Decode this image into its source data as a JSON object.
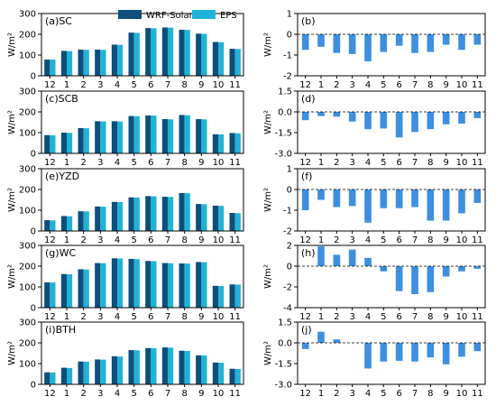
{
  "colors": {
    "wrf": "#0d4f7a",
    "eps": "#1fb3d8",
    "diff": "#3d8fe0",
    "axis": "#000000"
  },
  "legend": {
    "wrf_label": "WRF-Solar",
    "eps_label": "EPS"
  },
  "categories": [
    "12",
    "1",
    "2",
    "3",
    "4",
    "5",
    "6",
    "7",
    "8",
    "9",
    "10",
    "11"
  ],
  "chart_data": [
    {
      "type": "bar",
      "tag": "(a)SC",
      "ylabel": "W/m²",
      "ylim": [
        0,
        300
      ],
      "yticks": [
        0,
        100,
        200,
        300
      ],
      "series": [
        {
          "name": "WRF-Solar",
          "values": [
            78,
            120,
            126,
            126,
            150,
            208,
            230,
            233,
            222,
            203,
            163,
            130
          ]
        },
        {
          "name": "EPS",
          "values": [
            78,
            119,
            125,
            125,
            149,
            207,
            229,
            232,
            221,
            202,
            162,
            129
          ]
        }
      ]
    },
    {
      "type": "bar",
      "tag": "(b)",
      "ylabel": "W/m²",
      "ylim": [
        -2,
        1
      ],
      "yticks": [
        1,
        0,
        -1,
        -2
      ],
      "zero_line": true,
      "values": [
        -0.75,
        -0.6,
        -0.9,
        -0.95,
        -1.3,
        -0.85,
        -0.55,
        -0.9,
        -0.85,
        -0.5,
        -0.75,
        -0.5
      ]
    },
    {
      "type": "bar",
      "tag": "(c)SCB",
      "ylabel": "W/m²",
      "ylim": [
        0,
        300
      ],
      "yticks": [
        0,
        100,
        200,
        300
      ],
      "series": [
        {
          "name": "WRF-Solar",
          "values": [
            88,
            100,
            122,
            155,
            155,
            180,
            183,
            165,
            185,
            165,
            92,
            98
          ]
        },
        {
          "name": "EPS",
          "values": [
            87,
            99,
            121,
            154,
            154,
            179,
            182,
            164,
            184,
            164,
            91,
            97
          ]
        }
      ]
    },
    {
      "type": "bar",
      "tag": "(d)",
      "ylabel": "W/m²",
      "ylim": [
        -3,
        1.5
      ],
      "yticks": [
        1.5,
        0.0,
        -1.5,
        -3.0
      ],
      "tick_format": "fixed1",
      "zero_line": true,
      "values": [
        -0.6,
        -0.3,
        -0.35,
        -0.7,
        -1.25,
        -1.2,
        -1.85,
        -1.45,
        -1.25,
        -0.9,
        -0.85,
        -0.45
      ]
    },
    {
      "type": "bar",
      "tag": "(e)YZD",
      "ylabel": "W/m²",
      "ylim": [
        0,
        300
      ],
      "yticks": [
        0,
        100,
        200,
        300
      ],
      "series": [
        {
          "name": "WRF-Solar",
          "values": [
            52,
            72,
            95,
            118,
            140,
            162,
            168,
            165,
            183,
            130,
            122,
            87
          ]
        },
        {
          "name": "EPS",
          "values": [
            51,
            71,
            94,
            117,
            139,
            161,
            167,
            164,
            182,
            129,
            121,
            86
          ]
        }
      ]
    },
    {
      "type": "bar",
      "tag": "(f)",
      "ylabel": "W/m²",
      "ylim": [
        -2,
        1
      ],
      "yticks": [
        1,
        0,
        -1,
        -2
      ],
      "zero_line": true,
      "values": [
        -1.0,
        -0.5,
        -0.85,
        -0.8,
        -1.6,
        -0.9,
        -0.9,
        -0.85,
        -1.5,
        -1.5,
        -1.15,
        -0.65
      ]
    },
    {
      "type": "bar",
      "tag": "(g)WC",
      "ylabel": "W/m²",
      "ylim": [
        0,
        300
      ],
      "yticks": [
        0,
        100,
        200,
        300
      ],
      "series": [
        {
          "name": "WRF-Solar",
          "values": [
            122,
            162,
            185,
            215,
            238,
            235,
            225,
            215,
            213,
            220,
            105,
            112
          ]
        },
        {
          "name": "EPS",
          "values": [
            121,
            161,
            184,
            214,
            237,
            234,
            224,
            214,
            212,
            219,
            104,
            111
          ]
        }
      ]
    },
    {
      "type": "bar",
      "tag": "(h)",
      "ylabel": "W/m²",
      "ylim": [
        -4,
        2
      ],
      "yticks": [
        2,
        0,
        -2,
        -4
      ],
      "zero_line": true,
      "values": [
        0.0,
        1.9,
        1.1,
        1.6,
        0.8,
        -0.5,
        -2.4,
        -2.7,
        -2.5,
        -1.0,
        -0.5,
        -0.25
      ]
    },
    {
      "type": "bar",
      "tag": "(i)BTH",
      "ylabel": "W/m²",
      "ylim": [
        0,
        300
      ],
      "yticks": [
        0,
        100,
        200,
        300
      ],
      "series": [
        {
          "name": "WRF-Solar",
          "values": [
            58,
            80,
            110,
            120,
            135,
            165,
            175,
            178,
            162,
            140,
            105,
            75
          ]
        },
        {
          "name": "EPS",
          "values": [
            57,
            79,
            109,
            119,
            134,
            164,
            174,
            177,
            161,
            139,
            104,
            74
          ]
        }
      ]
    },
    {
      "type": "bar",
      "tag": "(j)",
      "ylabel": "W/m²",
      "ylim": [
        -3,
        1.5
      ],
      "yticks": [
        1.5,
        0.0,
        -1.5,
        -3.0
      ],
      "tick_format": "fixed1",
      "zero_line": true,
      "values": [
        -0.45,
        0.8,
        0.25,
        0.0,
        -1.85,
        -1.35,
        -1.3,
        -1.35,
        -1.05,
        -1.55,
        -1.0,
        -0.6
      ]
    }
  ]
}
